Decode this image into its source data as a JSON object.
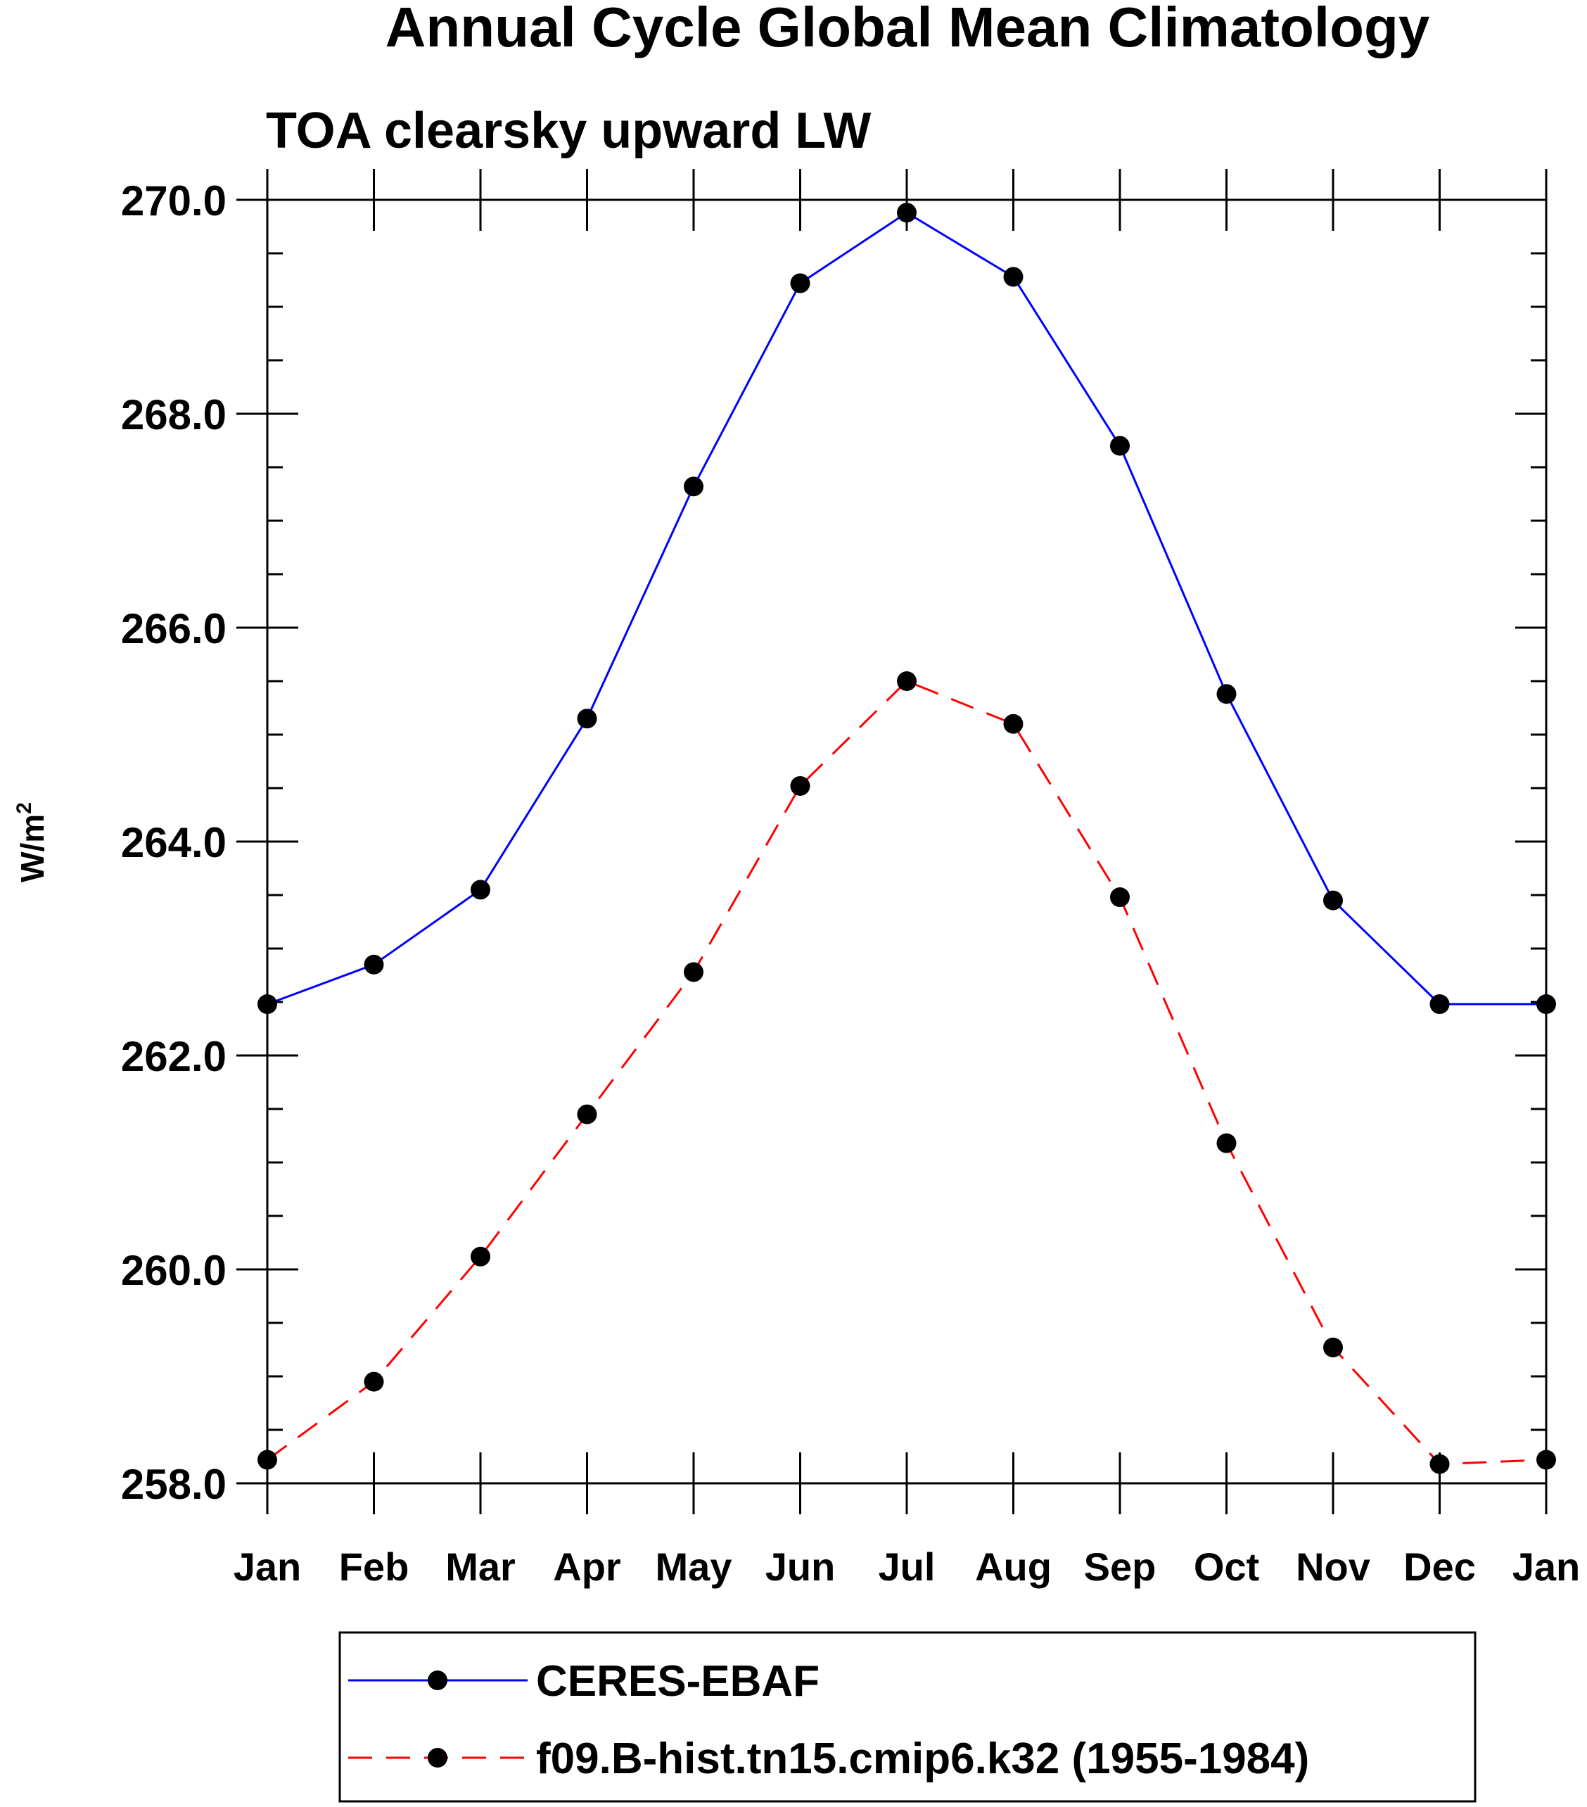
{
  "chart_data": {
    "type": "line",
    "title": "Annual Cycle Global Mean Climatology",
    "subtitle": "TOA clearsky upward LW",
    "ylabel": "W/m",
    "ylabel_superscript": "2",
    "xlabel": "",
    "categories": [
      "Jan",
      "Feb",
      "Mar",
      "Apr",
      "May",
      "Jun",
      "Jul",
      "Aug",
      "Sep",
      "Oct",
      "Nov",
      "Dec",
      "Jan"
    ],
    "ylim": [
      258.0,
      270.0
    ],
    "yticks": [
      {
        "value": 258,
        "label": "258.0"
      },
      {
        "value": 260,
        "label": "260.0"
      },
      {
        "value": 262,
        "label": "262.0"
      },
      {
        "value": 264,
        "label": "264.0"
      },
      {
        "value": 266,
        "label": "266.0"
      },
      {
        "value": 268,
        "label": "268.0"
      },
      {
        "value": 270,
        "label": "270.0"
      }
    ],
    "y_minor_step": 0.5,
    "grid": false,
    "legend_position": "bottom",
    "series": [
      {
        "name": "CERES-EBAF",
        "color": "#0000ff",
        "dash": "solid",
        "marker_color": "#000000",
        "values": [
          262.48,
          262.85,
          263.55,
          265.15,
          267.32,
          269.22,
          269.88,
          269.28,
          267.7,
          265.38,
          263.45,
          262.48,
          262.48
        ]
      },
      {
        "name": "f09.B-hist.tn15.cmip6.k32 (1955-1984)",
        "color": "#ff0000",
        "dash": "dashed",
        "marker_color": "#000000",
        "values": [
          258.22,
          258.95,
          260.12,
          261.45,
          262.78,
          264.52,
          265.5,
          265.1,
          263.48,
          261.18,
          259.27,
          258.18,
          258.22
        ]
      }
    ]
  }
}
